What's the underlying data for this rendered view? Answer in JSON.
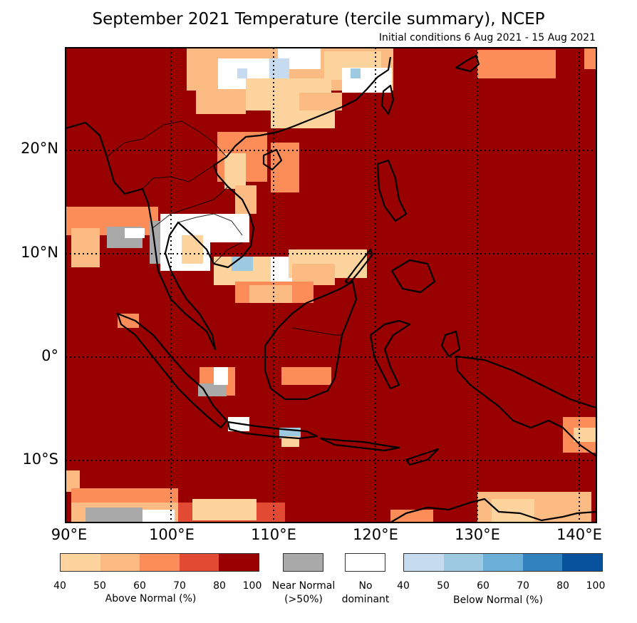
{
  "title": "September 2021 Temperature (tercile summary), NCEP",
  "subtitle": "Initial conditions 6 Aug 2021 - 15 Aug 2021",
  "lat_labels": [
    "20°N",
    "10°N",
    "0°",
    "10°S"
  ],
  "lon_labels": [
    "90°E",
    "100°E",
    "110°E",
    "120°E",
    "130°E",
    "140°E"
  ],
  "map_extent": {
    "lon": [
      90,
      140.5
    ],
    "lat": [
      -16,
      29.5
    ]
  },
  "legend": {
    "above": {
      "caption": "Above Normal (%)",
      "ticks": [
        "40",
        "50",
        "60",
        "70",
        "80",
        "100"
      ],
      "colors": [
        "#fdd49e",
        "#fdbb84",
        "#fc8d59",
        "#e34a33",
        "#990000"
      ]
    },
    "near": {
      "caption_line1": "Near Normal",
      "caption_line2": "(>50%)",
      "color": "#a9a9a9"
    },
    "none": {
      "caption_line1": "No",
      "caption_line2": "dominant",
      "color": "#ffffff"
    },
    "below": {
      "caption": "Below Normal (%)",
      "ticks": [
        "40",
        "50",
        "60",
        "70",
        "80",
        "100"
      ],
      "colors": [
        "#c6dbef",
        "#9ecae1",
        "#6baed6",
        "#3182bd",
        "#08519c"
      ]
    }
  },
  "background_color": "#990000"
}
